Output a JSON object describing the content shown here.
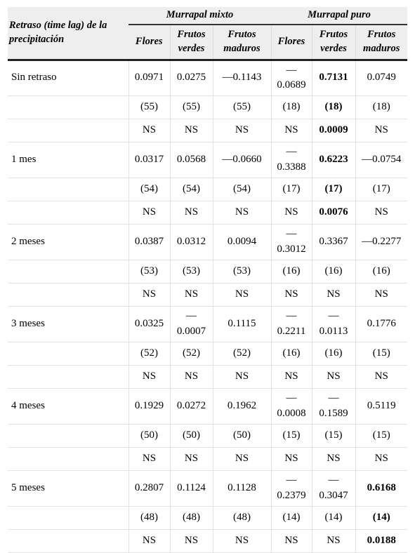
{
  "table": {
    "header": {
      "row_label": "Retraso (time lag) de la precipitación",
      "groups": [
        "Murrapal mixto",
        "Murrapal puro"
      ],
      "columns": [
        "Flores",
        "Frutos verdes",
        "Frutos maduros",
        "Flores",
        "Frutos verdes",
        "Frutos maduros"
      ]
    },
    "rows": [
      {
        "label": "Sin retraso",
        "cells": [
          "0.0971",
          "0.0275",
          "—0.1143",
          "—0.0689",
          {
            "text": "0.7131",
            "bold": true
          },
          "0.0749"
        ]
      },
      {
        "cells": [
          "(55)",
          "(55)",
          "(55)",
          "(18)",
          {
            "text": "(18)",
            "bold": true
          },
          "(18)"
        ]
      },
      {
        "cells": [
          "NS",
          "NS",
          "NS",
          "NS",
          {
            "text": "0.0009",
            "bold": true
          },
          "NS"
        ]
      },
      {
        "label": "1 mes",
        "cells": [
          "0.0317",
          "0.0568",
          "—0.0660",
          "—0.3388",
          {
            "text": "0.6223",
            "bold": true
          },
          "—0.0754"
        ]
      },
      {
        "cells": [
          "(54)",
          "(54)",
          "(54)",
          "(17)",
          {
            "text": "(17)",
            "bold": true
          },
          "(17)"
        ]
      },
      {
        "cells": [
          "NS",
          "NS",
          "NS",
          "NS",
          {
            "text": "0.0076",
            "bold": true
          },
          "NS"
        ]
      },
      {
        "label": "2 meses",
        "cells": [
          "0.0387",
          "0.0312",
          "0.0094",
          "—0.3012",
          "0.3367",
          "—0.2277"
        ]
      },
      {
        "cells": [
          "(53)",
          "(53)",
          "(53)",
          "(16)",
          "(16)",
          "(16)"
        ]
      },
      {
        "cells": [
          "NS",
          "NS",
          "NS",
          "NS",
          "NS",
          "NS"
        ]
      },
      {
        "label": "3 meses",
        "cells": [
          "0.0325",
          "—0.0007",
          "0.1115",
          "—0.2211",
          "—0.0113",
          "0.1776"
        ]
      },
      {
        "cells": [
          "(52)",
          "(52)",
          "(52)",
          "(16)",
          "(16)",
          "(15)"
        ]
      },
      {
        "cells": [
          "NS",
          "NS",
          "NS",
          "NS",
          "NS",
          "NS"
        ]
      },
      {
        "label": "4 meses",
        "cells": [
          "0.1929",
          "0.0272",
          "0.1962",
          "—0.0008",
          "—0.1589",
          "0.5119"
        ]
      },
      {
        "cells": [
          "(50)",
          "(50)",
          "(50)",
          "(15)",
          "(15)",
          "(15)"
        ]
      },
      {
        "cells": [
          "NS",
          "NS",
          "NS",
          "NS",
          "NS",
          "NS"
        ]
      },
      {
        "label": "5 meses",
        "cells": [
          "0.2807",
          "0.1124",
          "0.1128",
          "—0.2379",
          "—0.3047",
          {
            "text": "0.6168",
            "bold": true
          }
        ]
      },
      {
        "cells": [
          "(48)",
          "(48)",
          "(48)",
          "(14)",
          "(14)",
          {
            "text": "(14)",
            "bold": true
          }
        ]
      },
      {
        "cells": [
          "NS",
          "NS",
          "NS",
          "NS",
          "NS",
          {
            "text": "0.0188",
            "bold": true
          }
        ]
      }
    ]
  }
}
